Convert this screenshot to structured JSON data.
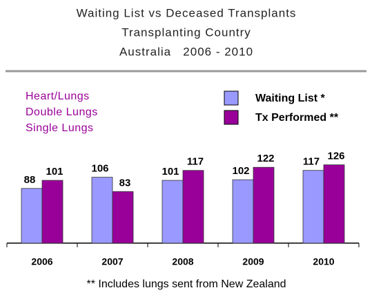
{
  "chart_data": {
    "type": "bar",
    "title": [
      "Waiting List vs Deceased Transplants",
      "Transplanting Country",
      "Australia   2006 - 2010"
    ],
    "subtitle": [
      "Heart/Lungs",
      "Double Lungs",
      "Single Lungs"
    ],
    "categories": [
      "2006",
      "2007",
      "2008",
      "2009",
      "2010"
    ],
    "series": [
      {
        "name": "Waiting List *",
        "color": "#9999ff",
        "values": [
          88,
          106,
          101,
          102,
          117
        ]
      },
      {
        "name": "Tx Performed **",
        "color": "#990099",
        "values": [
          101,
          83,
          117,
          122,
          126
        ]
      }
    ],
    "note": "** Includes lungs sent from New Zealand",
    "legend": "top-right"
  }
}
